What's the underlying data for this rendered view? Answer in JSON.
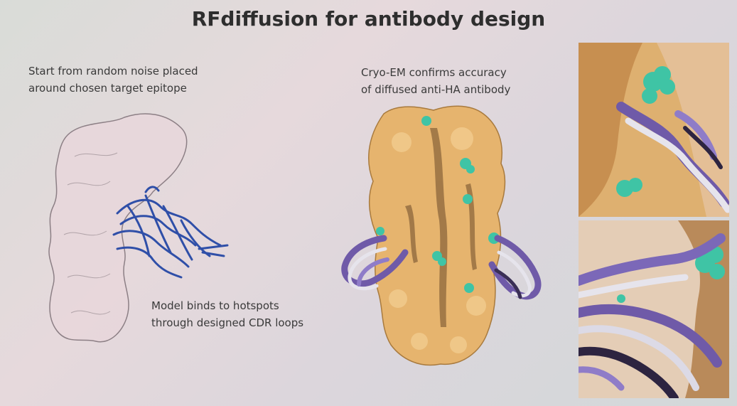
{
  "slide": {
    "title": "RFdiffusion for antibody design",
    "left_caption": [
      "Start from random noise placed",
      "around chosen target epitope"
    ],
    "middle_caption": [
      "Cryo-EM confirms accuracy",
      "of diffused anti-HA antibody"
    ],
    "bottom_caption": [
      "Model binds to hotspots",
      "through designed CDR loops"
    ]
  },
  "colors": {
    "target_surface": "#e7d4d8",
    "antibody_blue": "#2f4fa8",
    "ha_surface": "#e9b770",
    "hotspot": "#3fc4a5",
    "loop_purple": "#7b68b8",
    "loop_white": "#e8e6ee"
  }
}
